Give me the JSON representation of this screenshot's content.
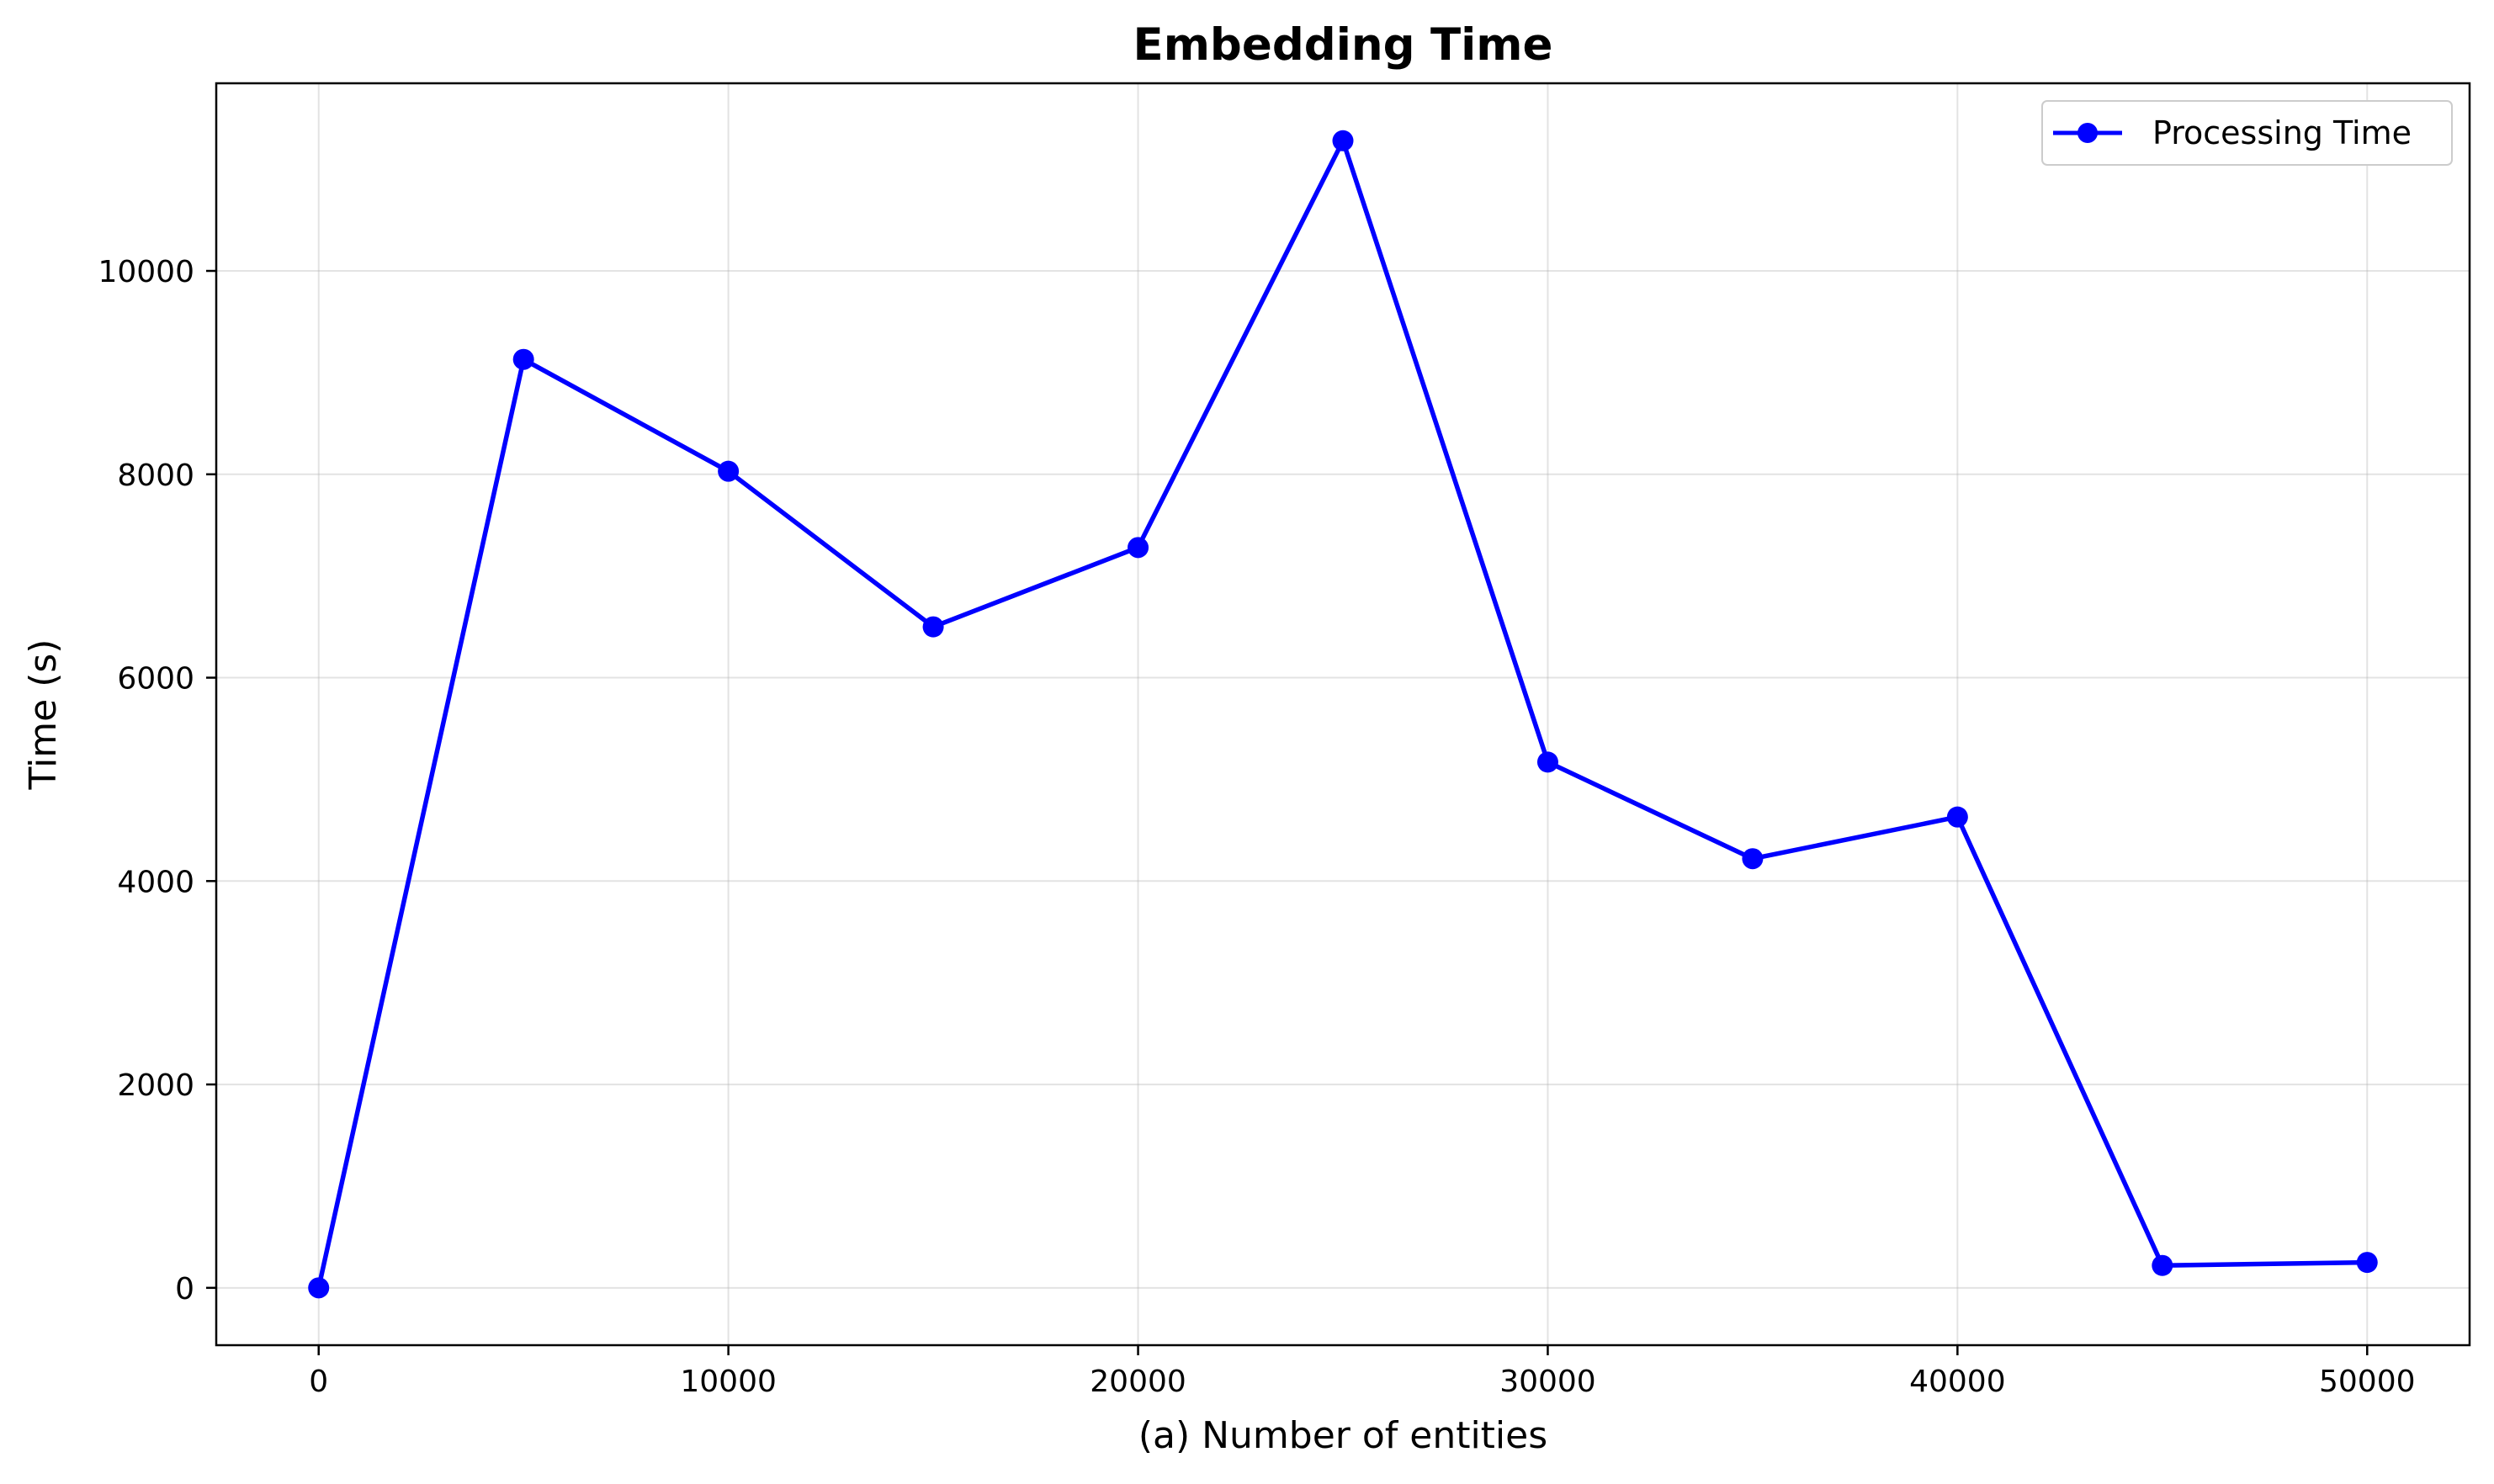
{
  "chart_data": {
    "type": "line",
    "title": "Embedding Time",
    "xlabel": "(a) Number of entities",
    "ylabel": "Time (s)",
    "x": [
      0,
      5000,
      10000,
      15000,
      20000,
      25000,
      30000,
      35000,
      40000,
      45000,
      50000
    ],
    "series": [
      {
        "name": "Processing Time",
        "color": "#0000ff",
        "marker": "circle",
        "values": [
          0,
          9130,
          8030,
          6500,
          7280,
          11280,
          5170,
          4220,
          4630,
          220,
          250
        ]
      }
    ],
    "xlim": [
      -2500,
      52500
    ],
    "ylim": [
      -564,
      11845
    ],
    "xticks": [
      "0",
      "10000",
      "20000",
      "30000",
      "40000",
      "50000"
    ],
    "yticks": [
      "0",
      "2000",
      "4000",
      "6000",
      "8000",
      "10000"
    ],
    "grid": true,
    "legend_position": "top-right"
  }
}
